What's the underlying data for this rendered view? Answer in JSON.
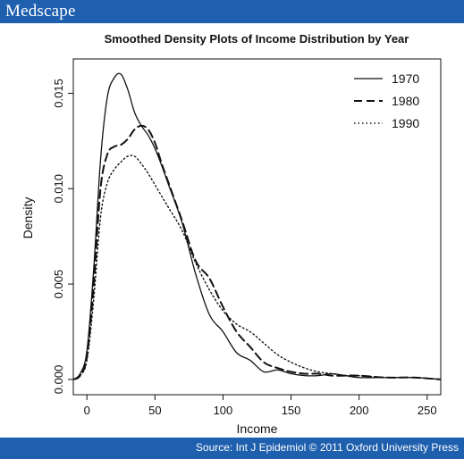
{
  "header": {
    "brand": "Medscape",
    "color": "#1e5fae"
  },
  "footer": {
    "source": "Source: Int J Epidemiol © 2011 Oxford University Press"
  },
  "chart_data": {
    "type": "line",
    "title": "Smoothed Density Plots of Income Distribution by Year",
    "xlabel": "Income",
    "ylabel": "Density",
    "xlim": [
      -10,
      260
    ],
    "ylim": [
      -0.0008,
      0.0168
    ],
    "xticks": [
      0,
      50,
      100,
      150,
      200,
      250
    ],
    "yticks": [
      0.0,
      0.005,
      0.01,
      0.015
    ],
    "ytick_labels": [
      "0.000",
      "0.005",
      "0.010",
      "0.015"
    ],
    "legend_position": "top-right",
    "grid": false,
    "series": [
      {
        "name": "1970",
        "style": "solid",
        "x": [
          -10,
          -5,
          0,
          5,
          10,
          15,
          20,
          25,
          30,
          35,
          40,
          45,
          50,
          55,
          60,
          70,
          80,
          90,
          100,
          110,
          120,
          130,
          140,
          150,
          160,
          170,
          180,
          190,
          200,
          220,
          240,
          260
        ],
        "y": [
          0.0,
          0.0003,
          0.0015,
          0.0058,
          0.0115,
          0.0148,
          0.0158,
          0.016,
          0.0152,
          0.014,
          0.0133,
          0.0128,
          0.0121,
          0.0112,
          0.0102,
          0.0082,
          0.0055,
          0.0034,
          0.0025,
          0.0014,
          0.001,
          0.0004,
          0.0005,
          0.0003,
          0.0002,
          0.0002,
          0.0003,
          0.0002,
          0.0001,
          0.0001,
          0.0001,
          0.0
        ]
      },
      {
        "name": "1980",
        "style": "dashed",
        "x": [
          -10,
          -5,
          0,
          5,
          10,
          15,
          20,
          25,
          30,
          35,
          40,
          45,
          50,
          55,
          60,
          70,
          80,
          90,
          100,
          110,
          120,
          130,
          140,
          150,
          160,
          170,
          180,
          190,
          200,
          220,
          240,
          260
        ],
        "y": [
          0.0,
          0.0002,
          0.0012,
          0.005,
          0.01,
          0.0118,
          0.0122,
          0.0123,
          0.0126,
          0.0131,
          0.0133,
          0.0131,
          0.0124,
          0.0113,
          0.0103,
          0.0083,
          0.0062,
          0.0053,
          0.0038,
          0.0025,
          0.0017,
          0.0009,
          0.0006,
          0.0004,
          0.0003,
          0.0003,
          0.0002,
          0.0002,
          0.0002,
          0.0001,
          0.0001,
          0.0
        ]
      },
      {
        "name": "1990",
        "style": "dotted",
        "x": [
          -10,
          -5,
          0,
          5,
          10,
          15,
          20,
          25,
          30,
          35,
          40,
          45,
          50,
          55,
          60,
          70,
          80,
          90,
          100,
          110,
          120,
          130,
          140,
          150,
          160,
          170,
          180,
          190,
          200,
          220,
          240,
          260
        ],
        "y": [
          0.0,
          0.0002,
          0.001,
          0.0042,
          0.0085,
          0.0103,
          0.011,
          0.0114,
          0.0117,
          0.0117,
          0.0113,
          0.0108,
          0.0102,
          0.0096,
          0.009,
          0.0078,
          0.0061,
          0.0047,
          0.0036,
          0.0029,
          0.0025,
          0.0019,
          0.0013,
          0.0009,
          0.0006,
          0.0004,
          0.0003,
          0.0002,
          0.0002,
          0.0001,
          0.0001,
          0.0
        ]
      }
    ]
  }
}
